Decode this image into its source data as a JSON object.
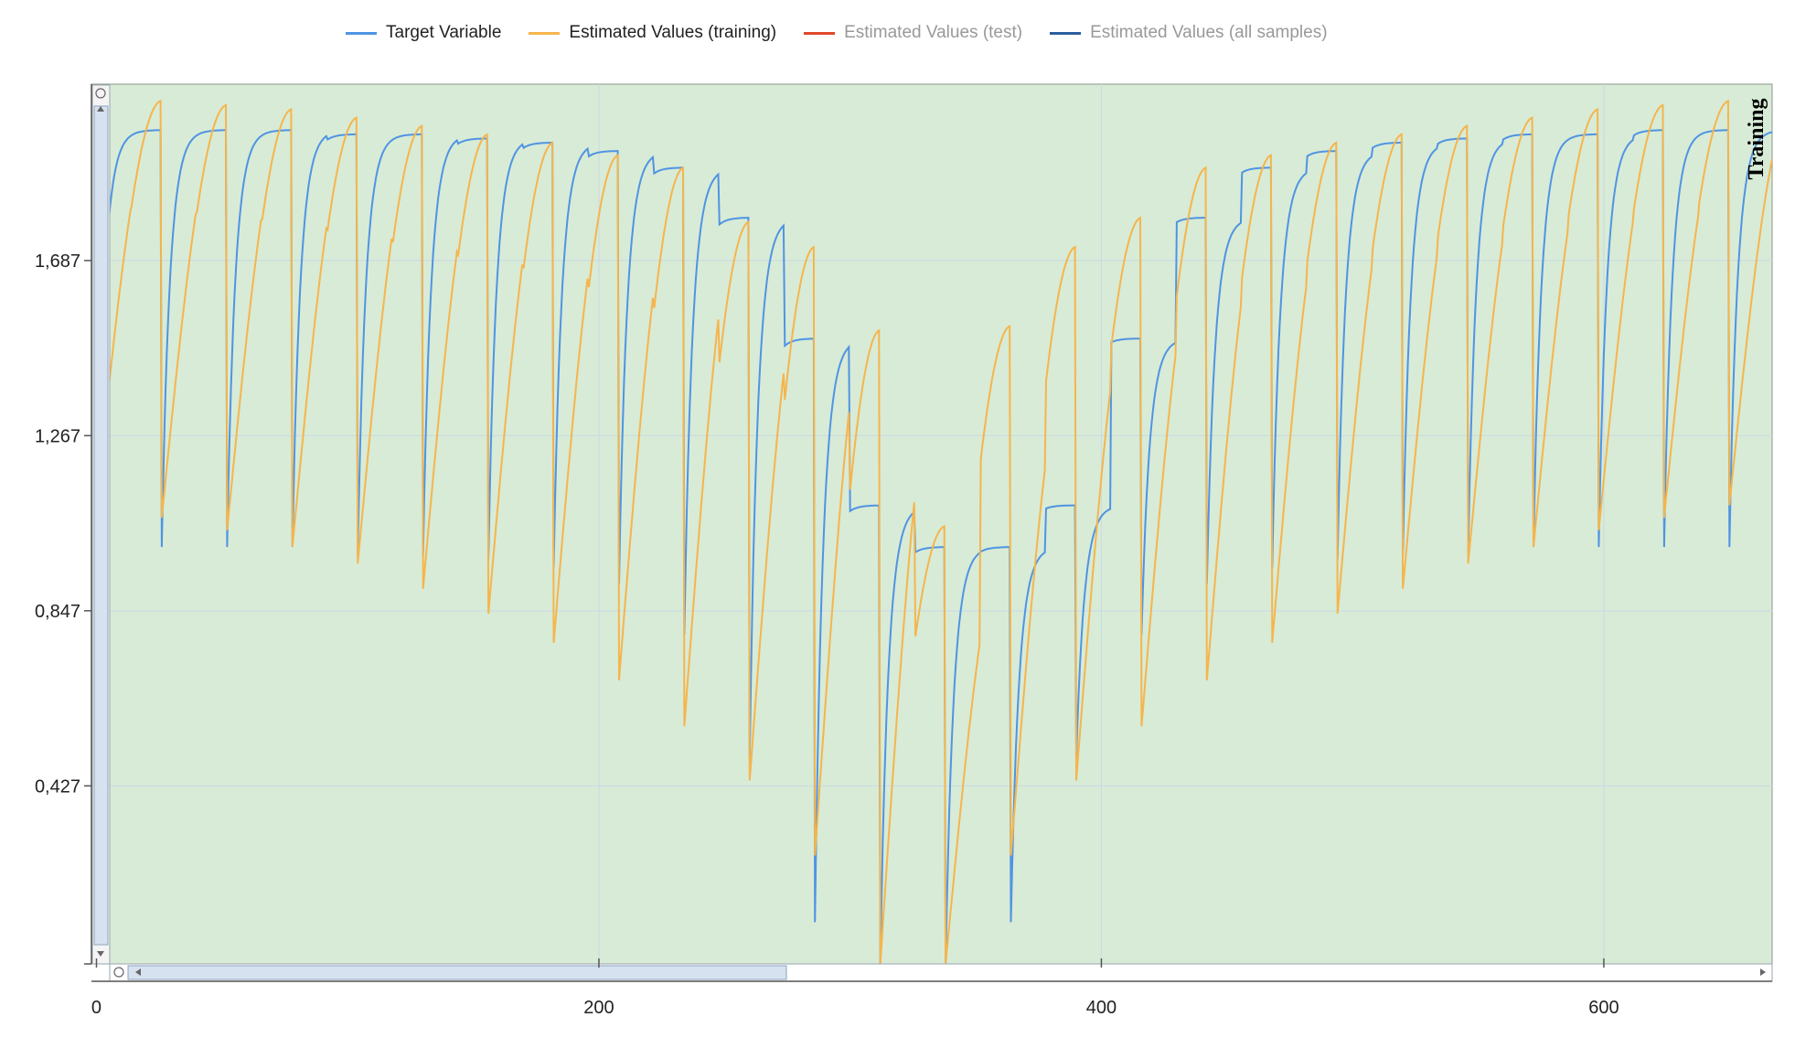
{
  "chart_data": {
    "type": "line",
    "title": "",
    "xlabel": "",
    "ylabel": "",
    "xlim": [
      -2,
      667
    ],
    "ylim": [
      0.0,
      2.11
    ],
    "x_ticks": [
      0,
      200,
      400,
      600
    ],
    "x_tick_labels": [
      "0",
      "200",
      "400",
      "600"
    ],
    "y_ticks": [
      0.427,
      0.847,
      1.267,
      1.687
    ],
    "y_tick_labels": [
      "0,427",
      "0,847",
      "1,267",
      "1,687"
    ],
    "grid": true,
    "legend_position": "top-center",
    "plot_background": "#d8ebd6",
    "corner_badge": "Training",
    "cycle_period": 26,
    "cycles": [
      {
        "start": 0,
        "peak_target": 2.0,
        "dip_target": 1.0,
        "peak_est": 2.07,
        "dip_est": 1.1
      },
      {
        "start": 14,
        "peak_target": 2.0,
        "dip_target": 1.0,
        "peak_est": 2.07,
        "dip_est": 1.07
      },
      {
        "start": 40,
        "peak_target": 2.0,
        "dip_target": 1.0,
        "peak_est": 2.06,
        "dip_est": 1.04
      },
      {
        "start": 66,
        "peak_target": 2.0,
        "dip_target": 1.0,
        "peak_est": 2.05,
        "dip_est": 1.0
      },
      {
        "start": 92,
        "peak_target": 1.99,
        "dip_target": 0.98,
        "peak_est": 2.03,
        "dip_est": 0.96
      },
      {
        "start": 118,
        "peak_target": 1.99,
        "dip_target": 0.98,
        "peak_est": 2.01,
        "dip_est": 0.9
      },
      {
        "start": 144,
        "peak_target": 1.98,
        "dip_target": 0.97,
        "peak_est": 1.99,
        "dip_est": 0.84
      },
      {
        "start": 170,
        "peak_target": 1.97,
        "dip_target": 0.95,
        "peak_est": 1.97,
        "dip_est": 0.77
      },
      {
        "start": 196,
        "peak_target": 1.95,
        "dip_target": 0.91,
        "peak_est": 1.94,
        "dip_est": 0.68
      },
      {
        "start": 222,
        "peak_target": 1.91,
        "dip_target": 0.79,
        "peak_est": 1.91,
        "dip_est": 0.57
      },
      {
        "start": 248,
        "peak_target": 1.79,
        "dip_target": 0.49,
        "peak_est": 1.78,
        "dip_est": 0.44
      },
      {
        "start": 274,
        "peak_target": 1.5,
        "dip_target": 0.1,
        "peak_est": 1.72,
        "dip_est": 0.26
      },
      {
        "start": 300,
        "peak_target": 1.1,
        "dip_target": 0.0,
        "peak_est": 1.52,
        "dip_est": 0.0
      },
      {
        "start": 326,
        "peak_target": 1.0,
        "dip_target": 0.0,
        "peak_est": 1.05,
        "dip_est": 0.0
      },
      {
        "start": 352,
        "peak_target": 1.0,
        "dip_target": 0.1,
        "peak_est": 1.53,
        "dip_est": 0.26
      },
      {
        "start": 378,
        "peak_target": 1.1,
        "dip_target": 0.49,
        "peak_est": 1.72,
        "dip_est": 0.44
      },
      {
        "start": 404,
        "peak_target": 1.5,
        "dip_target": 0.79,
        "peak_est": 1.79,
        "dip_est": 0.57
      },
      {
        "start": 430,
        "peak_target": 1.79,
        "dip_target": 0.91,
        "peak_est": 1.91,
        "dip_est": 0.68
      },
      {
        "start": 456,
        "peak_target": 1.91,
        "dip_target": 0.95,
        "peak_est": 1.94,
        "dip_est": 0.77
      },
      {
        "start": 482,
        "peak_target": 1.95,
        "dip_target": 0.97,
        "peak_est": 1.97,
        "dip_est": 0.84
      },
      {
        "start": 508,
        "peak_target": 1.97,
        "dip_target": 0.98,
        "peak_est": 1.99,
        "dip_est": 0.9
      },
      {
        "start": 534,
        "peak_target": 1.98,
        "dip_target": 0.98,
        "peak_est": 2.01,
        "dip_est": 0.96
      },
      {
        "start": 560,
        "peak_target": 1.99,
        "dip_target": 1.0,
        "peak_est": 2.03,
        "dip_est": 1.0
      },
      {
        "start": 586,
        "peak_target": 1.99,
        "dip_target": 1.0,
        "peak_est": 2.05,
        "dip_est": 1.04
      },
      {
        "start": 612,
        "peak_target": 2.0,
        "dip_target": 1.0,
        "peak_est": 2.06,
        "dip_est": 1.07
      },
      {
        "start": 638,
        "peak_target": 2.0,
        "dip_target": 1.0,
        "peak_est": 2.07,
        "dip_est": 1.1
      }
    ],
    "series": [
      {
        "name": "Target Variable",
        "color": "#4f94e3",
        "visible": true
      },
      {
        "name": "Estimated Values (training)",
        "color": "#f5b54d",
        "visible": true
      },
      {
        "name": "Estimated Values (test)",
        "color": "#e0482a",
        "visible": false
      },
      {
        "name": "Estimated Values (all samples)",
        "color": "#2d5f9e",
        "visible": false
      }
    ]
  },
  "legend": {
    "items": [
      {
        "label": "Target Variable",
        "color": "#4f94e3",
        "active": true
      },
      {
        "label": "Estimated Values (training)",
        "color": "#f5b54d",
        "active": true
      },
      {
        "label": "Estimated Values (test)",
        "color": "#e0482a",
        "active": false
      },
      {
        "label": "Estimated Values (all samples)",
        "color": "#2d5f9e",
        "active": false
      }
    ]
  }
}
